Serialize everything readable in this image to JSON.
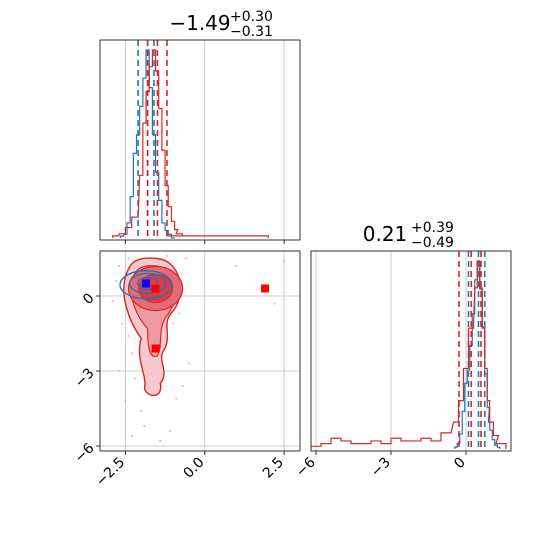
{
  "chart_data": [
    {
      "type": "histogram",
      "panel": "marginal-1",
      "title_value": "−1.49",
      "title_sup": "+0.30",
      "title_sub": "−0.31",
      "xlim": [
        -3.3,
        3.0
      ],
      "grid": true,
      "series": [
        {
          "color": "#1f77b4",
          "bins_x": [
            -2.6,
            -2.5,
            -2.4,
            -2.3,
            -2.2,
            -2.1,
            -2.0,
            -1.9,
            -1.8,
            -1.7,
            -1.6,
            -1.5,
            -1.4,
            -1.3,
            -1.2,
            -1.1,
            -1.0
          ],
          "density": [
            0.01,
            0.02,
            0.08,
            0.22,
            0.45,
            0.55,
            0.7,
            0.85,
            1.0,
            0.8,
            0.55,
            0.35,
            0.2,
            0.08,
            0.04,
            0.02,
            0.0
          ],
          "quantile_lines": [
            -2.1,
            -1.8,
            -1.6
          ]
        },
        {
          "color": "#d62728",
          "bins_x": [
            -2.8,
            -2.6,
            -2.4,
            -2.2,
            -2.0,
            -1.9,
            -1.8,
            -1.7,
            -1.6,
            -1.5,
            -1.4,
            -1.3,
            -1.2,
            -1.1,
            -1.0,
            -0.9,
            -0.8,
            -0.6,
            -0.4,
            1.2,
            1.5,
            1.9
          ],
          "density": [
            0.01,
            0.02,
            0.05,
            0.1,
            0.3,
            0.55,
            0.7,
            0.82,
            0.9,
            0.8,
            0.62,
            0.42,
            0.25,
            0.15,
            0.08,
            0.04,
            0.02,
            0.01,
            0.01,
            0.01,
            0.01,
            0.01
          ],
          "quantile_lines": [
            -1.8,
            -1.49,
            -1.19
          ]
        }
      ]
    },
    {
      "type": "contour",
      "panel": "joint",
      "xlim": [
        -3.3,
        3.0
      ],
      "ylim": [
        -6.2,
        1.8
      ],
      "xticks": [
        "−2.5",
        "0.0",
        "2.5"
      ],
      "xtick_values": [
        -2.5,
        0,
        2.5
      ],
      "yticks": [
        "−6",
        "−3",
        "0"
      ],
      "ytick_values": [
        -6,
        -3,
        0
      ],
      "grid": true,
      "markers": {
        "blue": [
          [
            -1.85,
            0.5
          ]
        ],
        "red": [
          [
            -1.55,
            0.3
          ],
          [
            -1.55,
            -2.1
          ],
          [
            1.9,
            0.3
          ]
        ]
      },
      "scatter_points": [
        [
          -2.7,
          1.2
        ],
        [
          -2.4,
          -1.6
        ],
        [
          -2.3,
          -2.3
        ],
        [
          -2.1,
          -0.5
        ],
        [
          -2.6,
          -1.1
        ],
        [
          -2.2,
          -3.3
        ],
        [
          -2.0,
          -4.6
        ],
        [
          -1.9,
          -5.2
        ],
        [
          -1.1,
          -5.4
        ],
        [
          -0.9,
          -4.1
        ],
        [
          -0.7,
          -3.6
        ],
        [
          -2.5,
          -4.2
        ],
        [
          -1.0,
          -1.1
        ],
        [
          -0.8,
          -0.7
        ],
        [
          -2.8,
          0.6
        ],
        [
          -2.3,
          -5.6
        ],
        [
          -1.4,
          -5.8
        ],
        [
          -0.5,
          -2.7
        ],
        [
          -2.4,
          1.5
        ],
        [
          -1.2,
          1.6
        ],
        [
          1.0,
          1.2
        ],
        [
          2.5,
          1.4
        ],
        [
          2.2,
          -0.3
        ],
        [
          -0.6,
          1.5
        ],
        [
          -2.7,
          -3.0
        ],
        [
          -2.9,
          -0.2
        ]
      ]
    },
    {
      "type": "histogram",
      "panel": "marginal-2",
      "title_value": "0.21",
      "title_sup": "+0.39",
      "title_sub": "−0.49",
      "xlim": [
        -6.2,
        1.8
      ],
      "xticks": [
        "−6",
        "−3",
        "0"
      ],
      "xtick_values": [
        -6,
        -3,
        0
      ],
      "grid": true,
      "series": [
        {
          "color": "#1f77b4",
          "bins_x": [
            -0.4,
            -0.3,
            -0.2,
            -0.1,
            0.0,
            0.1,
            0.2,
            0.3,
            0.4,
            0.5,
            0.6,
            0.7,
            0.8,
            0.9,
            1.0,
            1.1,
            1.2,
            1.3
          ],
          "density": [
            0.01,
            0.03,
            0.08,
            0.2,
            0.35,
            0.42,
            0.55,
            0.72,
            0.9,
            1.0,
            0.85,
            0.65,
            0.4,
            0.22,
            0.1,
            0.05,
            0.02,
            0.01
          ],
          "quantile_lines": [
            0.1,
            0.5,
            0.75
          ]
        },
        {
          "color": "#d62728",
          "bins_x": [
            -6.0,
            -5.6,
            -5.2,
            -4.8,
            -4.4,
            -4.0,
            -3.6,
            -3.2,
            -2.8,
            -2.4,
            -2.0,
            -1.6,
            -1.2,
            -0.8,
            -0.4,
            -0.2,
            0.0,
            0.2,
            0.4,
            0.5,
            0.6,
            0.7,
            0.8,
            0.9,
            1.0,
            1.2,
            1.4
          ],
          "density": [
            0.01,
            0.02,
            0.04,
            0.03,
            0.02,
            0.02,
            0.03,
            0.02,
            0.04,
            0.03,
            0.03,
            0.04,
            0.03,
            0.06,
            0.1,
            0.18,
            0.3,
            0.45,
            0.6,
            0.7,
            0.6,
            0.45,
            0.3,
            0.18,
            0.1,
            0.05,
            0.02
          ],
          "quantile_lines": [
            -0.28,
            0.21,
            0.6
          ]
        }
      ]
    }
  ]
}
